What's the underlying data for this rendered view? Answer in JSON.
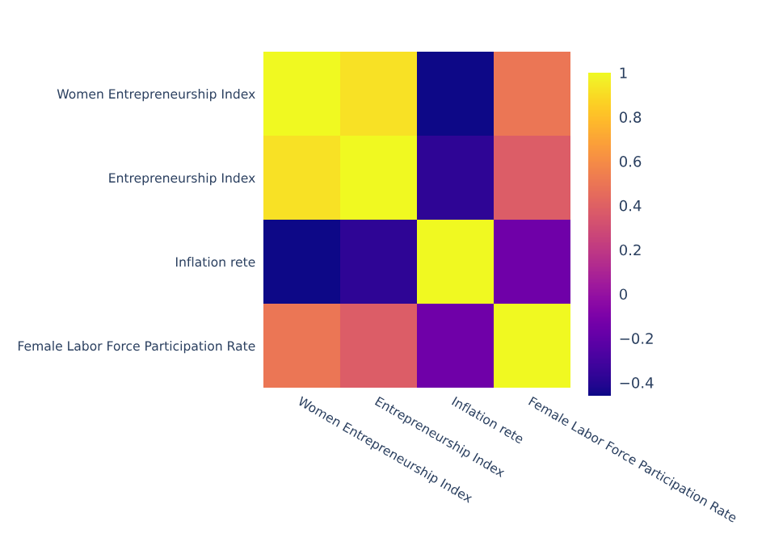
{
  "chart_data": {
    "type": "heatmap",
    "categories": [
      "Women Entrepreneurship Index",
      "Entrepreneurship Index",
      "Inflation rete",
      "Female Labor Force Participation Rate"
    ],
    "y_categories": [
      "Women Entrepreneurship Index",
      "Entrepreneurship Index",
      "Inflation rete",
      "Female Labor Force Participation Rate"
    ],
    "cells": [
      [
        1,
        0.92,
        -0.46,
        0.5
      ],
      [
        0.92,
        1,
        -0.38,
        0.38
      ],
      [
        -0.46,
        -0.38,
        1,
        -0.15
      ],
      [
        0.5,
        0.38,
        -0.15,
        1
      ]
    ],
    "clim": [
      -0.46,
      1
    ],
    "cticks": [
      -0.4,
      -0.2,
      0,
      0.2,
      0.4,
      0.6,
      0.8,
      1
    ]
  }
}
